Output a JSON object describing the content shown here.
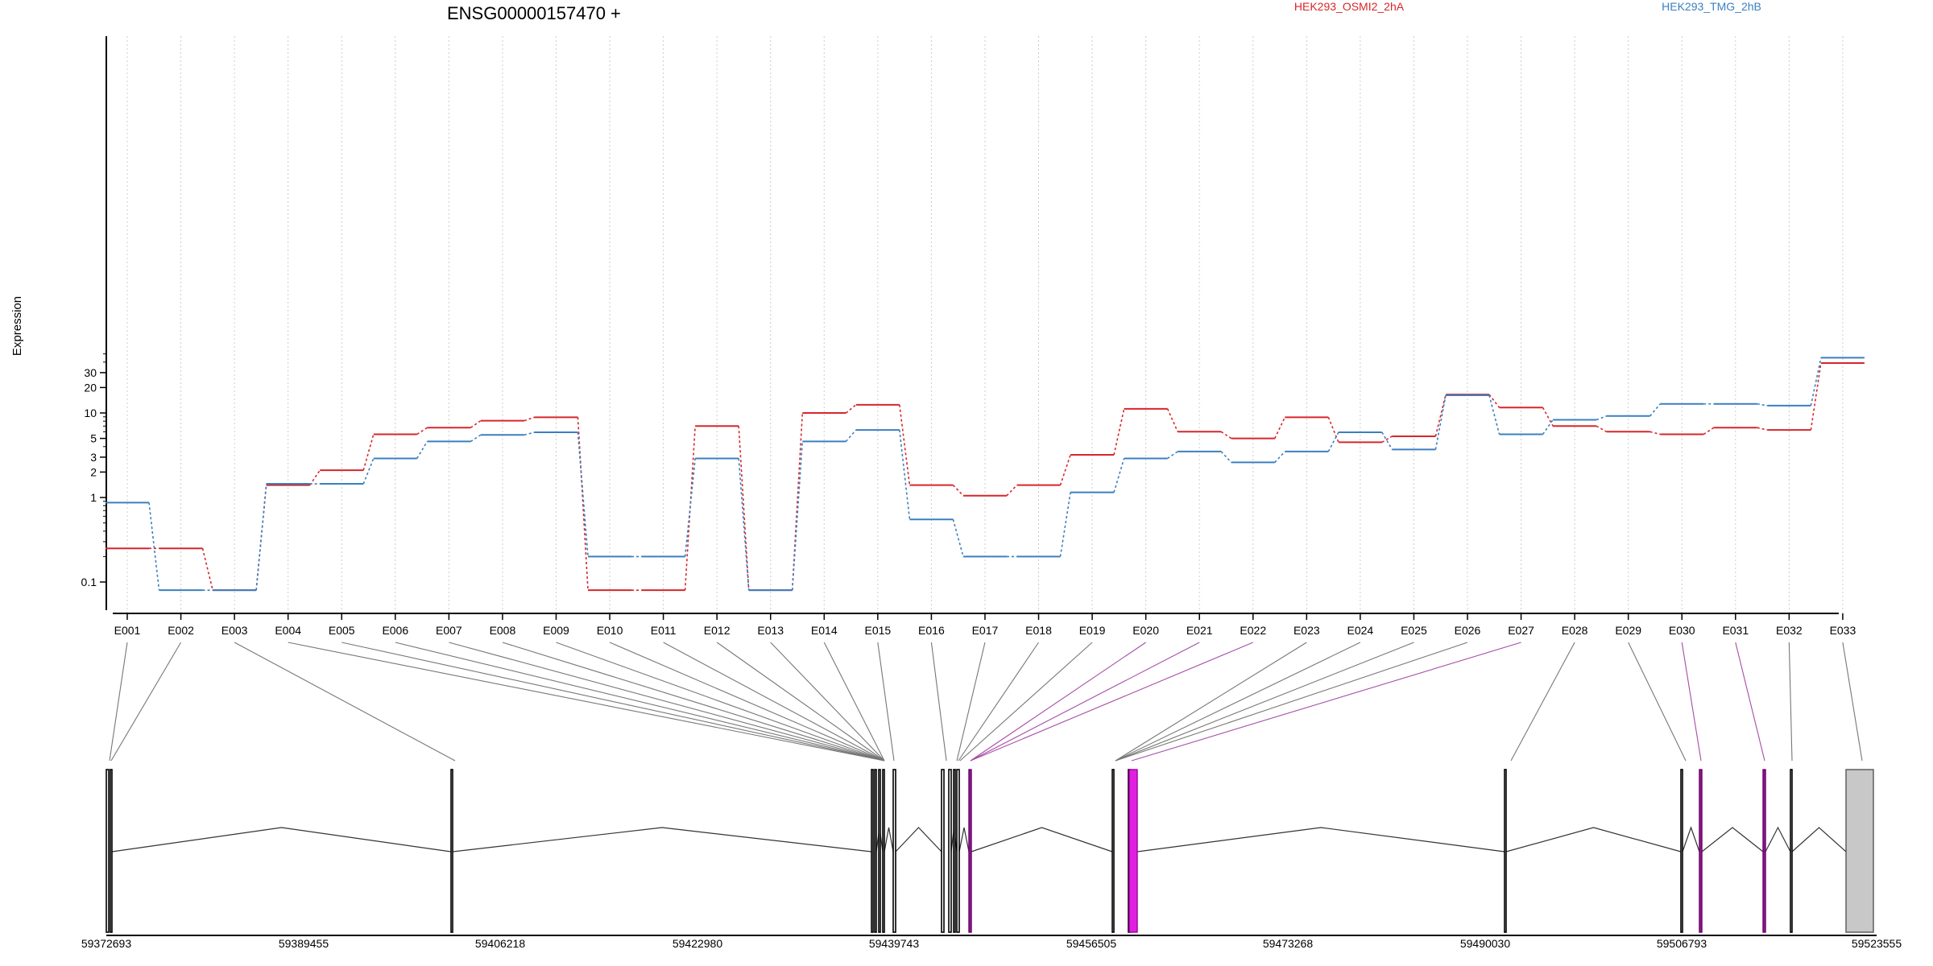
{
  "chart_data": {
    "type": "line",
    "title": "ENSG00000157470 +",
    "xlabel": "",
    "ylabel": "Expression",
    "y_scale": "log",
    "y_ticks": [
      "0.1",
      "1",
      "2",
      "3",
      "5",
      "10",
      "20",
      "30"
    ],
    "grid": "vertical dotted lines at exon centers",
    "legend": "top, above plot",
    "categories": [
      "E001",
      "E002",
      "E003",
      "E004",
      "E005",
      "E006",
      "E007",
      "E008",
      "E009",
      "E010",
      "E011",
      "E012",
      "E013",
      "E014",
      "E015",
      "E016",
      "E017",
      "E018",
      "E019",
      "E020",
      "E021",
      "E022",
      "E023",
      "E024",
      "E025",
      "E026",
      "E027",
      "E028",
      "E029",
      "E030",
      "E031",
      "E032",
      "E033"
    ],
    "series": [
      {
        "name": "HEK293_OSMI2_2hA",
        "color": "#d7262a",
        "values": [
          0.25,
          0.25,
          0.08,
          1.4,
          2.1,
          5.6,
          6.7,
          8.1,
          8.9,
          0.08,
          0.08,
          7,
          0.08,
          10,
          12.5,
          1.4,
          1.05,
          1.4,
          3.2,
          11.2,
          6,
          5,
          8.9,
          4.5,
          5.3,
          16.5,
          11.6,
          7,
          6,
          5.6,
          6.7,
          6.3,
          39
        ]
      },
      {
        "name": "HEK293_TMG_2hB",
        "color": "#3b7fbf",
        "values": [
          0.87,
          0.08,
          0.08,
          1.45,
          1.45,
          2.9,
          4.6,
          5.5,
          5.9,
          0.2,
          0.2,
          2.9,
          0.08,
          4.6,
          6.3,
          0.55,
          0.2,
          0.2,
          1.15,
          2.9,
          3.5,
          2.6,
          3.5,
          5.9,
          3.7,
          16.2,
          5.6,
          8.3,
          9.2,
          12.8,
          12.8,
          12.2,
          45
        ]
      }
    ],
    "gene_model": {
      "coordinate_labels": [
        "59372693",
        "59389455",
        "59406218",
        "59422980",
        "59439743",
        "59456505",
        "59473268",
        "59490030",
        "59506793",
        "59523555"
      ]
    }
  }
}
